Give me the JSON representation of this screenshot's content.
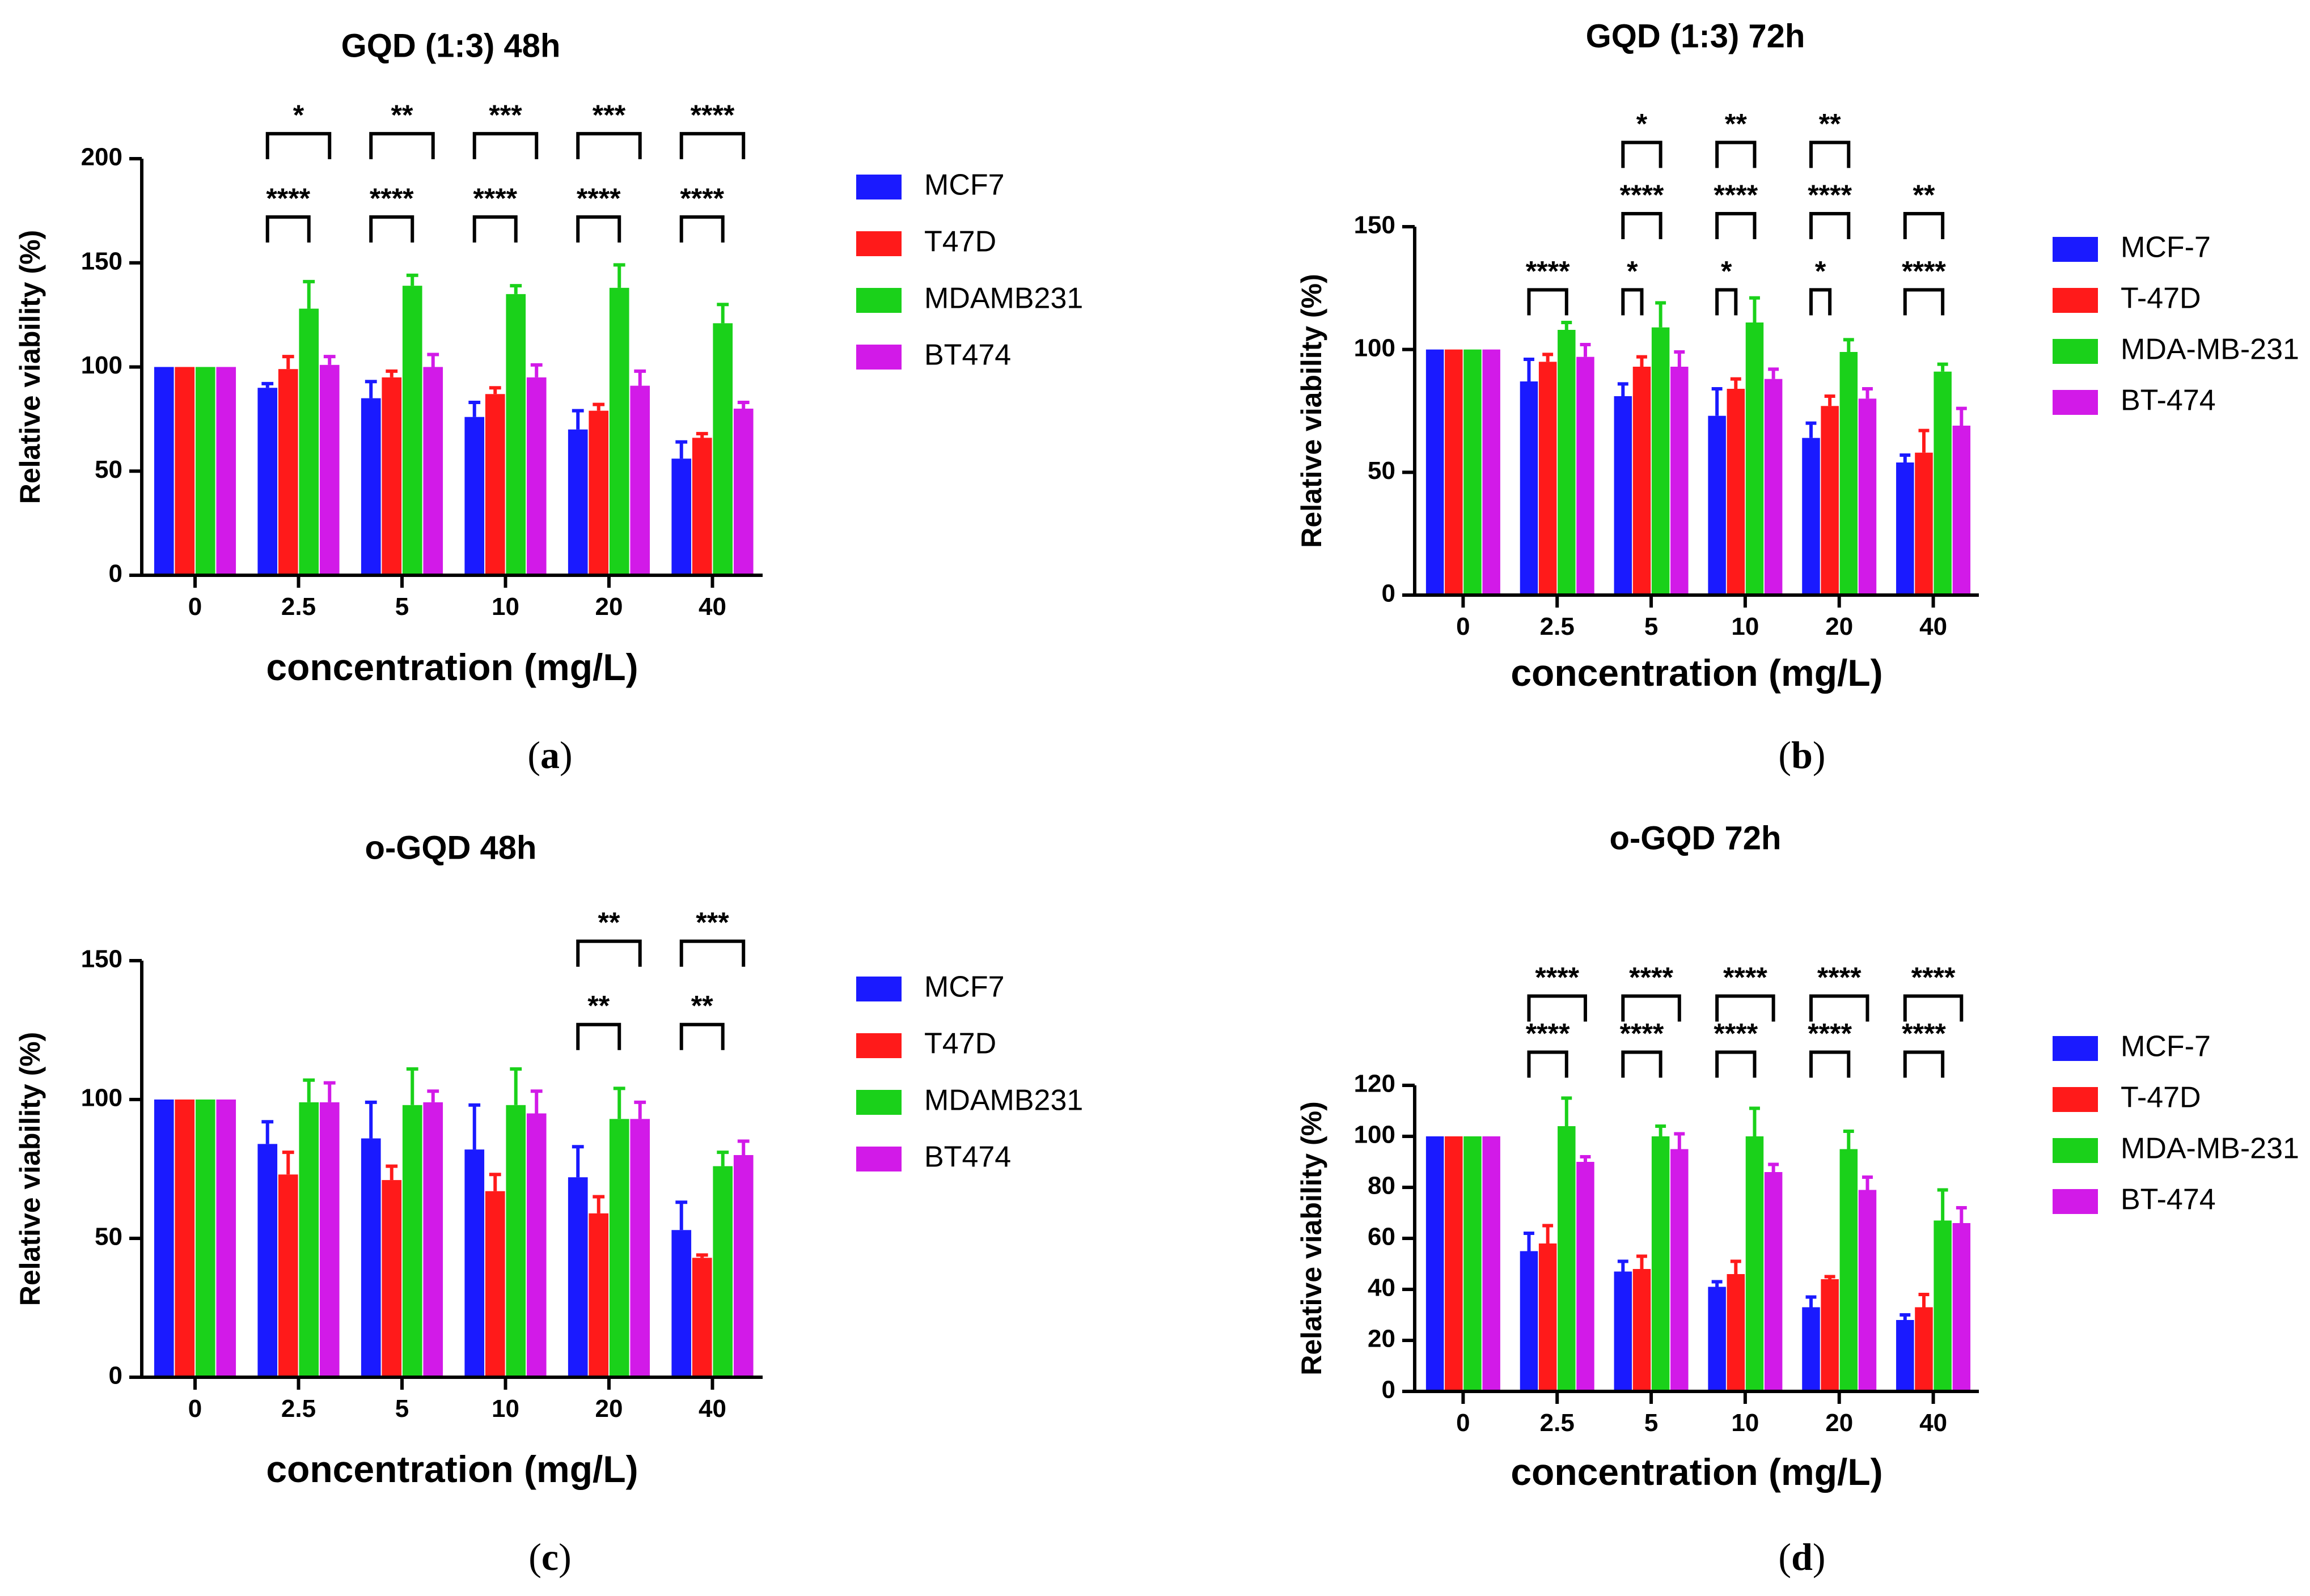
{
  "colors": {
    "MCF7": "#1a1aff",
    "T47D": "#ff1a1a",
    "MDAMB231": "#1ad11a",
    "BT474": "#d21ae8",
    "axis": "#000000"
  },
  "chart_data": [
    {
      "type": "bar",
      "panel": "a",
      "title": "GQD (1:3) 48h",
      "xlabel": "concentration (mg/L)",
      "ylabel": "Relative viability (%)",
      "categories": [
        "0",
        "2.5",
        "5",
        "10",
        "20",
        "40"
      ],
      "ylim": [
        0,
        200
      ],
      "yticks": [
        0,
        50,
        100,
        150,
        200
      ],
      "series": [
        {
          "name": "MCF7",
          "values": [
            100,
            90,
            85,
            76,
            70,
            56
          ],
          "errors": [
            0,
            2,
            8,
            7,
            9,
            8
          ]
        },
        {
          "name": "T47D",
          "values": [
            100,
            99,
            95,
            87,
            79,
            66
          ],
          "errors": [
            0,
            6,
            3,
            3,
            3,
            2
          ]
        },
        {
          "name": "MDAMB231",
          "values": [
            100,
            128,
            139,
            135,
            138,
            121
          ],
          "errors": [
            0,
            13,
            5,
            4,
            11,
            9
          ]
        },
        {
          "name": "BT474",
          "values": [
            100,
            101,
            100,
            95,
            91,
            80
          ],
          "errors": [
            0,
            4,
            6,
            6,
            7,
            3
          ]
        }
      ],
      "significance": [
        {
          "category": "2.5",
          "top": "*",
          "bottom": "****"
        },
        {
          "category": "5",
          "top": "**",
          "bottom": "****"
        },
        {
          "category": "10",
          "top": "***",
          "bottom": "****"
        },
        {
          "category": "20",
          "top": "***",
          "bottom": "****"
        },
        {
          "category": "40",
          "top": "****",
          "bottom": "****"
        }
      ],
      "legend": "right",
      "caption": "a"
    },
    {
      "type": "bar",
      "panel": "b",
      "title": "GQD (1:3) 72h",
      "xlabel": "concentration (mg/L)",
      "ylabel": "Relative viability (%)",
      "categories": [
        "0",
        "2.5",
        "5",
        "10",
        "20",
        "40"
      ],
      "ylim": [
        0,
        150
      ],
      "yticks": [
        0,
        50,
        100,
        150
      ],
      "series": [
        {
          "name": "MCF-7",
          "values": [
            100,
            87,
            81,
            73,
            64,
            54
          ],
          "errors": [
            0,
            9,
            5,
            11,
            6,
            3
          ]
        },
        {
          "name": "T-47D",
          "values": [
            100,
            95,
            93,
            84,
            77,
            58
          ],
          "errors": [
            0,
            3,
            4,
            4,
            4,
            9
          ]
        },
        {
          "name": "MDA-MB-231",
          "values": [
            100,
            108,
            109,
            111,
            99,
            91
          ],
          "errors": [
            0,
            3,
            10,
            10,
            5,
            3
          ]
        },
        {
          "name": "BT-474",
          "values": [
            100,
            97,
            93,
            88,
            80,
            69
          ],
          "errors": [
            0,
            5,
            6,
            4,
            4,
            7
          ]
        }
      ],
      "significance": [
        {
          "category": "2.5",
          "levels": [
            "****"
          ]
        },
        {
          "category": "5",
          "levels": [
            "*",
            "****",
            "*"
          ]
        },
        {
          "category": "10",
          "levels": [
            "*",
            "****",
            "**"
          ]
        },
        {
          "category": "20",
          "levels": [
            "*",
            "****",
            "**"
          ]
        },
        {
          "category": "40",
          "levels": [
            "****",
            "**"
          ]
        }
      ],
      "legend": "right",
      "caption": "b"
    },
    {
      "type": "bar",
      "panel": "c",
      "title": "o-GQD 48h",
      "xlabel": "concentration (mg/L)",
      "ylabel": "Relative viability (%)",
      "categories": [
        "0",
        "2.5",
        "5",
        "10",
        "20",
        "40"
      ],
      "ylim": [
        0,
        150
      ],
      "yticks": [
        0,
        50,
        100,
        150
      ],
      "series": [
        {
          "name": "MCF7",
          "values": [
            100,
            84,
            86,
            82,
            72,
            53
          ],
          "errors": [
            0,
            8,
            13,
            16,
            11,
            10
          ]
        },
        {
          "name": "T47D",
          "values": [
            100,
            73,
            71,
            67,
            59,
            43
          ],
          "errors": [
            0,
            8,
            5,
            6,
            6,
            1
          ]
        },
        {
          "name": "MDAMB231",
          "values": [
            100,
            99,
            98,
            98,
            93,
            76
          ],
          "errors": [
            0,
            8,
            13,
            13,
            11,
            5
          ]
        },
        {
          "name": "BT474",
          "values": [
            100,
            99,
            99,
            95,
            93,
            80
          ],
          "errors": [
            0,
            7,
            4,
            8,
            6,
            5
          ]
        }
      ],
      "significance": [
        {
          "category": "20",
          "top": "**",
          "bottom": "**"
        },
        {
          "category": "40",
          "top": "***",
          "bottom": "**"
        }
      ],
      "legend": "right",
      "caption": "c"
    },
    {
      "type": "bar",
      "panel": "d",
      "title": "o-GQD 72h",
      "xlabel": "concentration (mg/L)",
      "ylabel": "Relative viability (%)",
      "categories": [
        "0",
        "2.5",
        "5",
        "10",
        "20",
        "40"
      ],
      "ylim": [
        0,
        120
      ],
      "yticks": [
        0,
        20,
        40,
        60,
        80,
        100,
        120
      ],
      "series": [
        {
          "name": "MCF-7",
          "values": [
            100,
            55,
            47,
            41,
            33,
            28
          ],
          "errors": [
            0,
            7,
            4,
            2,
            4,
            2
          ]
        },
        {
          "name": "T-47D",
          "values": [
            100,
            58,
            48,
            46,
            44,
            33
          ],
          "errors": [
            0,
            7,
            5,
            5,
            1,
            5
          ]
        },
        {
          "name": "MDA-MB-231",
          "values": [
            100,
            104,
            100,
            100,
            95,
            67
          ],
          "errors": [
            0,
            11,
            4,
            11,
            7,
            12
          ]
        },
        {
          "name": "BT-474",
          "values": [
            100,
            90,
            95,
            86,
            79,
            66
          ],
          "errors": [
            0,
            2,
            6,
            3,
            5,
            6
          ]
        }
      ],
      "significance": [
        {
          "category": "2.5",
          "top": "****",
          "bottom": "****"
        },
        {
          "category": "5",
          "top": "****",
          "bottom": "****"
        },
        {
          "category": "10",
          "top": "****",
          "bottom": "****"
        },
        {
          "category": "20",
          "top": "****",
          "bottom": "****"
        },
        {
          "category": "40",
          "top": "****",
          "bottom": "****"
        }
      ],
      "legend": "right",
      "caption": "d"
    }
  ]
}
